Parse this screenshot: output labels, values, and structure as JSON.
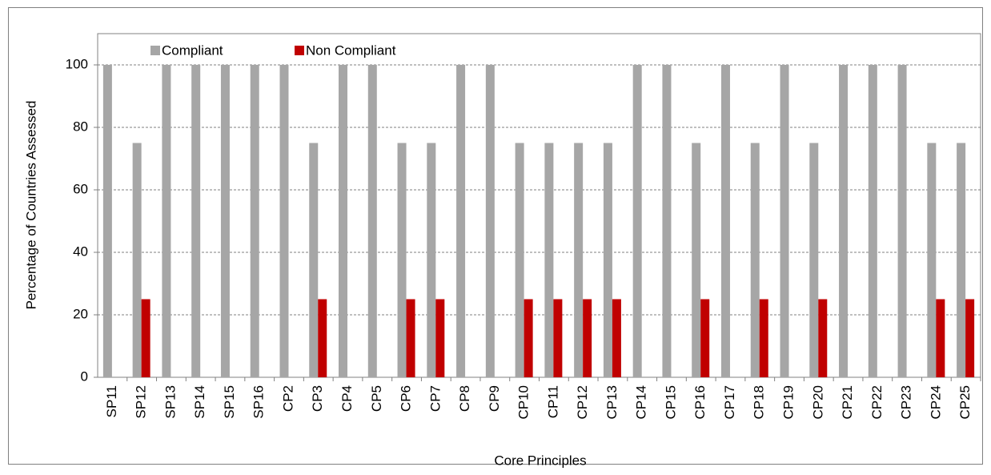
{
  "chart_data": {
    "type": "bar",
    "x_label": "Core Principles",
    "y_label": "Percentage of Countries Assessed",
    "categories": [
      "SP11",
      "SP12",
      "SP13",
      "SP14",
      "SP15",
      "SP16",
      "CP2",
      "CP3",
      "CP4",
      "CP5",
      "CP6",
      "CP7",
      "CP8",
      "CP9",
      "CP10",
      "CP11",
      "CP12",
      "CP13",
      "CP14",
      "CP15",
      "CP16",
      "CP17",
      "CP18",
      "CP19",
      "CP20",
      "CP21",
      "CP22",
      "CP23",
      "CP24",
      "CP25"
    ],
    "series": [
      {
        "name": "Compliant",
        "color": "#a6a6a6",
        "values": [
          100,
          75,
          100,
          100,
          100,
          100,
          100,
          75,
          100,
          100,
          75,
          75,
          100,
          100,
          75,
          75,
          75,
          75,
          100,
          100,
          75,
          100,
          75,
          100,
          75,
          100,
          100,
          100,
          75,
          75
        ]
      },
      {
        "name": "Non Compliant",
        "color": "#c00000",
        "values": [
          0,
          25,
          0,
          0,
          0,
          0,
          0,
          25,
          0,
          0,
          25,
          25,
          0,
          0,
          25,
          25,
          25,
          25,
          0,
          0,
          25,
          0,
          25,
          0,
          25,
          0,
          0,
          0,
          25,
          25
        ]
      }
    ],
    "ylim": [
      0,
      110
    ],
    "yticks": [
      0,
      20,
      40,
      60,
      80,
      100
    ],
    "grid": true,
    "legend": "top-left"
  }
}
